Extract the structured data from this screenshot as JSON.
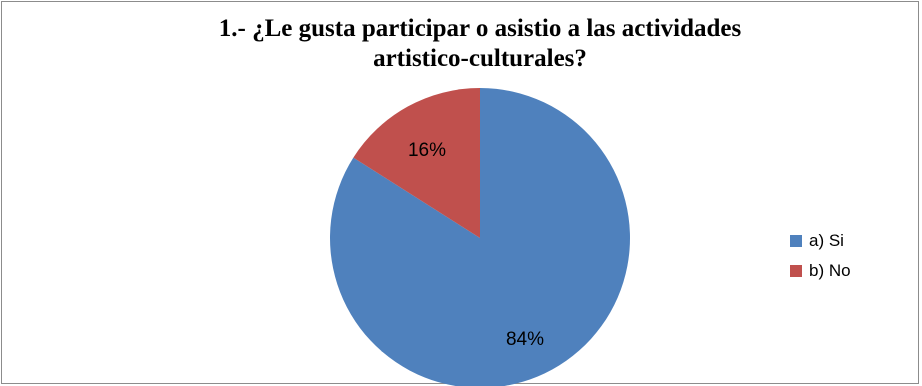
{
  "chart_data": {
    "type": "pie",
    "title_lines": [
      "1.- ¿Le gusta participar  o asistio a las actividades",
      "artistico-culturales?"
    ],
    "categories": [
      "a) Si",
      "b) No"
    ],
    "values": [
      84,
      16
    ],
    "labels": [
      "84%",
      "16%"
    ],
    "colors": [
      "#4f81bd",
      "#c0504d"
    ],
    "legend": "right"
  }
}
